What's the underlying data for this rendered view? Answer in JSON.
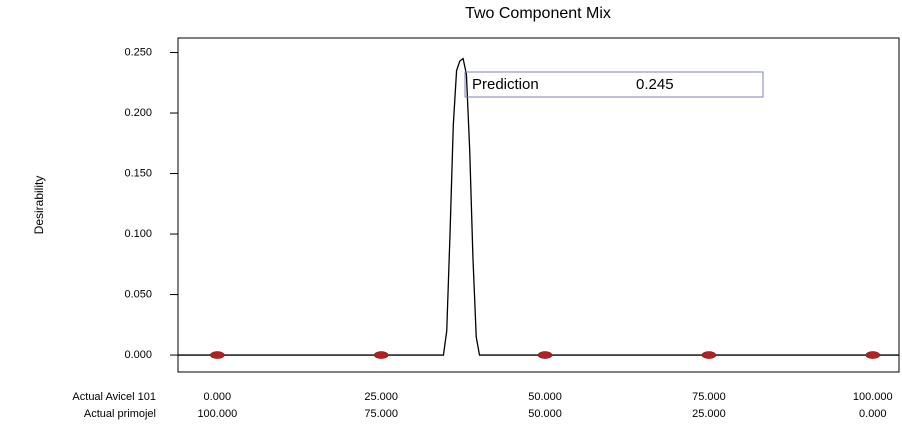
{
  "chart_data": {
    "type": "line",
    "title": "Two Component Mix",
    "ylabel": "Desirability",
    "xlabel": "Actual Avicel 101",
    "x2label": "Actual primojel",
    "series": [
      {
        "color": "#000000",
        "x": [
          -6,
          34.5,
          35,
          35.5,
          36,
          36.5,
          37,
          37.5,
          38,
          38.5,
          39,
          39.5,
          40,
          104
        ],
        "values": [
          0,
          0,
          0.02,
          0.1,
          0.19,
          0.235,
          0.243,
          0.245,
          0.232,
          0.17,
          0.08,
          0.015,
          0,
          0
        ]
      }
    ],
    "points": {
      "color": "#b22222",
      "x": [
        0,
        25,
        50,
        75,
        100
      ],
      "values": [
        0,
        0,
        0,
        0,
        0
      ]
    },
    "annotation": {
      "label": "Prediction",
      "value": 0.245
    },
    "xlim": [
      -6,
      104
    ],
    "x2lim": [
      106,
      -4
    ],
    "ylim": [
      -0.014,
      0.262
    ],
    "xticks": [
      {
        "value": 0,
        "label": "0.000"
      },
      {
        "value": 25,
        "label": "25.000"
      },
      {
        "value": 50,
        "label": "50.000"
      },
      {
        "value": 75,
        "label": "75.000"
      },
      {
        "value": 100,
        "label": "100.000"
      }
    ],
    "x2ticks": [
      {
        "value": 100,
        "label": "100.000"
      },
      {
        "value": 75,
        "label": "75.000"
      },
      {
        "value": 50,
        "label": "50.000"
      },
      {
        "value": 25,
        "label": "25.000"
      },
      {
        "value": 0,
        "label": "0.000"
      }
    ],
    "yticks": [
      {
        "value": 0,
        "label": "0.000"
      },
      {
        "value": 0.05,
        "label": "0.050"
      },
      {
        "value": 0.1,
        "label": "0.100"
      },
      {
        "value": 0.15,
        "label": "0.150"
      },
      {
        "value": 0.2,
        "label": "0.200"
      },
      {
        "value": 0.25,
        "label": "0.250"
      }
    ]
  }
}
